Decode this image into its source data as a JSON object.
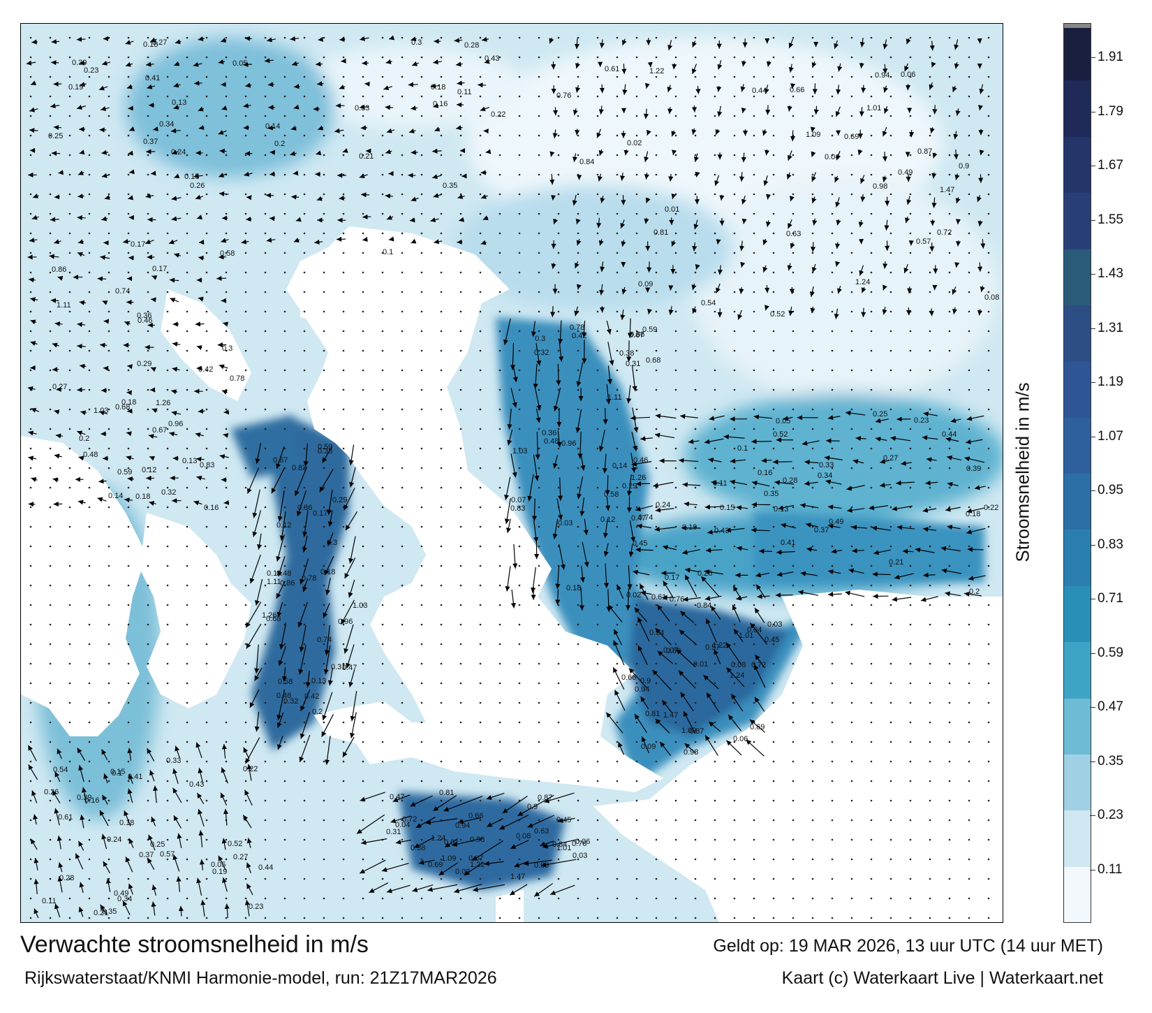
{
  "map": {
    "title": "Verwachte stroomsnelheid in m/s",
    "subtitle": "Rijkswaterstaat/KNMI Harmonie-model, run: 21Z17MAR2026",
    "valid_time": "Geldt op: 19 MAR 2026, 13 uur UTC (14 uur MET)",
    "credit": "Kaart (c) Waterkaart Live | Waterkaart.net",
    "colors": {
      "land": "#ffffff",
      "sea_light": "#e8f3f8",
      "sea_mid": "#4fa8c8",
      "sea_deep": "#1f5f93",
      "arrow": "#000000"
    },
    "speed_labels": [
      "0.18",
      "0.14",
      "0.3",
      "0.13",
      "0.17",
      "0.2",
      "0.16",
      "0.18",
      "0.27",
      "0.11",
      "0.05",
      "0.28",
      "0.26",
      "0.25",
      "0.21",
      "0.22",
      "0.1",
      "0.19",
      "0.23",
      "0.24",
      "0.15",
      "0.33",
      "0.34",
      "0.35",
      "0.37",
      "0.39",
      "0.41",
      "0.43",
      "0.44",
      "0.49",
      "0.52",
      "0.54",
      "0.57",
      "0.61",
      "0.63",
      "0.66",
      "0.69",
      "0.72",
      "0.76",
      "0.81",
      "0.84",
      "0.87",
      "0.9",
      "0.94",
      "0.98",
      "1.01",
      "1.09",
      "1.22",
      "1.47",
      "1.24",
      "0.08",
      "0.06",
      "0.04",
      "0.02",
      "0.01",
      "0.09",
      "0.07",
      "0.03",
      "0.45",
      "0.47",
      "0.38",
      "0.31",
      "0.29",
      "0.32",
      "0.46",
      "0.48",
      "0.59",
      "0.67",
      "0.74",
      "0.83",
      "0.96",
      "1.03",
      "1.11",
      "1.26",
      "0.86",
      "0.78",
      "0.68",
      "0.58",
      "0.42",
      "0.36",
      "0.12"
    ]
  },
  "colorbar": {
    "label": "Stroomsnelheid in m/s",
    "ticks": [
      "1.91",
      "1.79",
      "1.67",
      "1.55",
      "1.43",
      "1.31",
      "1.19",
      "1.07",
      "0.95",
      "0.83",
      "0.71",
      "0.59",
      "0.47",
      "0.35",
      "0.23",
      "0.11"
    ],
    "colors": [
      "#f2f8fb",
      "#cfe7f1",
      "#9fd0e3",
      "#6ebbd6",
      "#3fa3c6",
      "#2a8fb7",
      "#2a7fae",
      "#2b6fa6",
      "#2f609e",
      "#2e5594",
      "#2d4e84",
      "#2a5c7a",
      "#283f76",
      "#24356a",
      "#1f2a58",
      "#19203f"
    ]
  }
}
